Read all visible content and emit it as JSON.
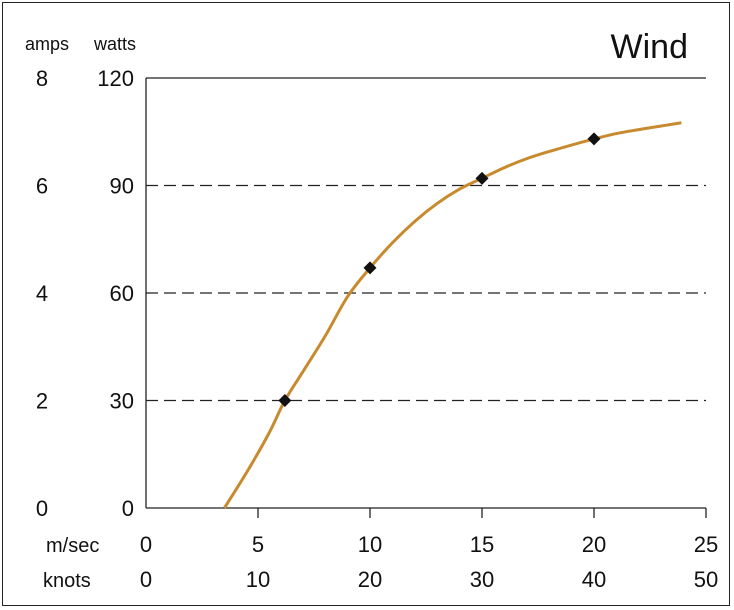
{
  "chart_data": {
    "type": "line",
    "title": "Wind",
    "title_color": "#c07a1f",
    "line_color": "#c88a2e",
    "marker_color": "#111111",
    "grid": "dashed-horizontal",
    "legend": "none",
    "left_axes": [
      {
        "label": "amps",
        "ticks": [
          "8",
          "6",
          "4",
          "2",
          "0"
        ]
      },
      {
        "label": "watts",
        "ticks": [
          "120",
          "90",
          "60",
          "30",
          "0"
        ]
      }
    ],
    "bottom_axes": [
      {
        "label": "m/sec",
        "ticks": [
          "0",
          "5",
          "10",
          "15",
          "20",
          "25"
        ]
      },
      {
        "label": "knots",
        "ticks": [
          "0",
          "10",
          "20",
          "30",
          "40",
          "50"
        ]
      }
    ],
    "xlim": [
      0,
      25
    ],
    "ylim": [
      0,
      120
    ],
    "y_gridlines": [
      30,
      60,
      90
    ],
    "x_tick_values": [
      0,
      5,
      10,
      15,
      20,
      25
    ],
    "y_tick_values": [
      120,
      90,
      60,
      30,
      0
    ],
    "curve": {
      "x": [
        3.5,
        4.5,
        5.5,
        6.2,
        7.0,
        8.0,
        9.0,
        10.0,
        11.0,
        12.0,
        13.0,
        14.0,
        15.0,
        16.0,
        17.0,
        18.0,
        19.0,
        20.0,
        21.0,
        22.0,
        23.0,
        23.9
      ],
      "y": [
        0,
        10,
        21,
        30,
        38,
        48,
        59,
        67,
        74,
        80,
        85,
        89,
        92,
        95,
        97.5,
        99.5,
        101.3,
        103,
        104.5,
        105.6,
        106.6,
        107.5
      ]
    },
    "markers": {
      "x": [
        6.2,
        10.0,
        15.0,
        20.0
      ],
      "y": [
        30,
        67,
        92,
        103
      ]
    }
  }
}
